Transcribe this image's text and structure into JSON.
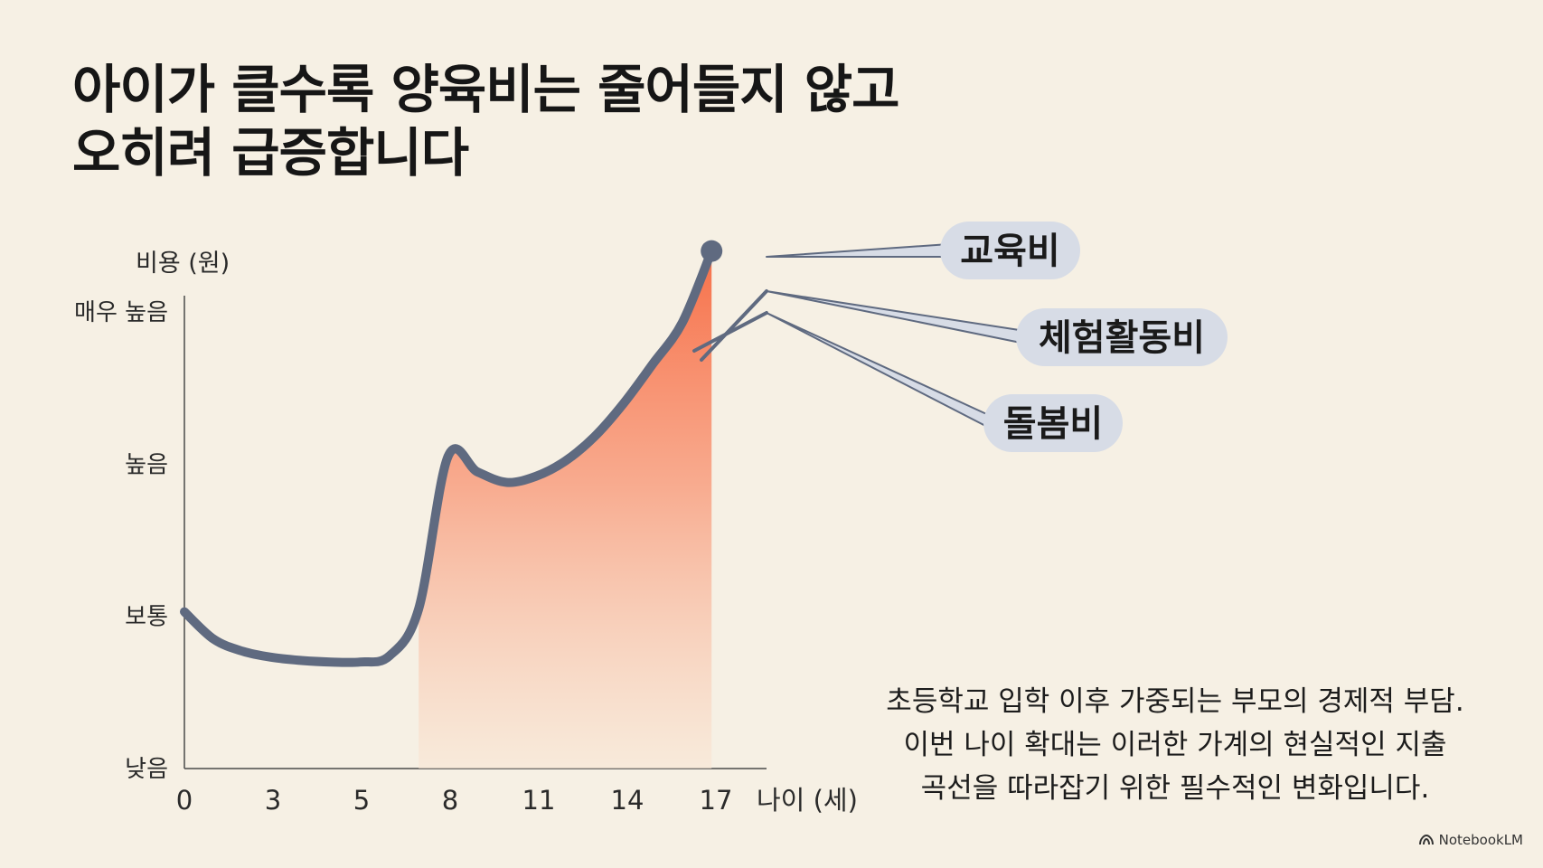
{
  "title": {
    "line1": "아이가 클수록 양육비는 줄어들지 않고",
    "line2": "오히려 급증합니다"
  },
  "caption": {
    "line1": "초등학교 입학 이후 가중되는 부모의 경제적 부담.",
    "line2": "이번 나이 확대는 이러한 가계의 현실적인 지출",
    "line3": "곡선을 따라잡기 위한 필수적인 변화입니다."
  },
  "brand": "NotebookLM",
  "colors": {
    "background": "#f6f0e4",
    "line": "#5f6a80",
    "fill_top": "#f7714a",
    "fill_bottom": "#f9e6d4",
    "callout_bg": "#d7dce6",
    "connector": "#5f6a80"
  },
  "chart_data": {
    "type": "area",
    "ylabel": "비용 (원)",
    "xlabel": "나이 (세)",
    "xticks": [
      "0",
      "3",
      "5",
      "8",
      "11",
      "14",
      "17"
    ],
    "yticks": [
      "낮음",
      "보통",
      "높음",
      "매우 높음"
    ],
    "ylim": [
      0,
      3
    ],
    "series": [
      {
        "points": [
          [
            0,
            1.03
          ],
          [
            1,
            0.85
          ],
          [
            2,
            0.77
          ],
          [
            3,
            0.73
          ],
          [
            4,
            0.71
          ],
          [
            5,
            0.7
          ],
          [
            6,
            0.7
          ],
          [
            7,
            0.74
          ],
          [
            8,
            1.05
          ],
          [
            9,
            2.05
          ],
          [
            10,
            1.95
          ],
          [
            11,
            1.88
          ],
          [
            12,
            1.92
          ],
          [
            13,
            2.02
          ],
          [
            14,
            2.18
          ],
          [
            15,
            2.4
          ],
          [
            16,
            2.66
          ],
          [
            17,
            2.93
          ],
          [
            18,
            3.4
          ]
        ]
      }
    ],
    "shaded_from_index": 3,
    "callouts": [
      "교육비",
      "체험활동비",
      "돌봄비"
    ]
  }
}
